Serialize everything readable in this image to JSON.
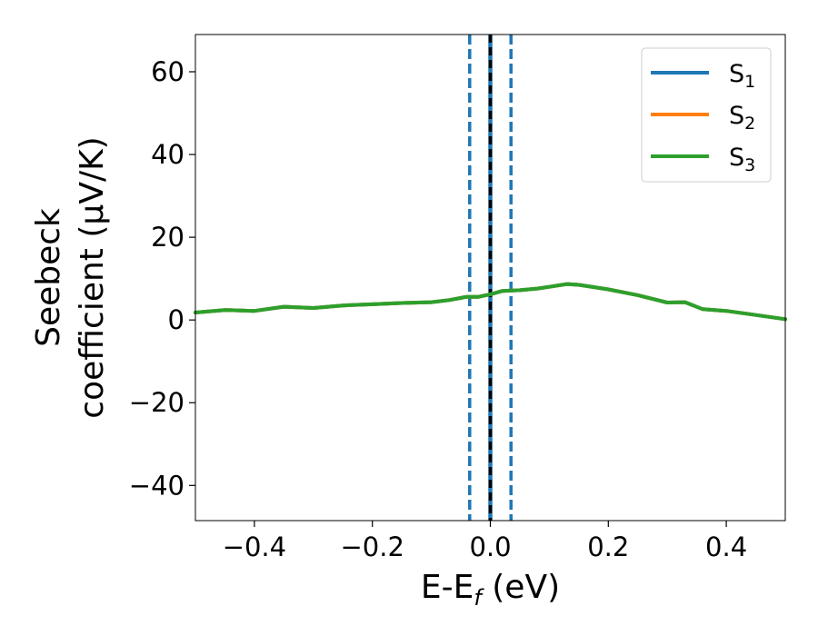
{
  "chart_data": {
    "type": "line",
    "title": "",
    "xlabel": {
      "base": "E-E",
      "sub": "f",
      "suffix": " (eV)"
    },
    "ylabel": {
      "line1": "Seebeck",
      "line2": "coefficient  (μV/K)"
    },
    "xlim": [
      -0.5,
      0.5
    ],
    "ylim": [
      -48.5,
      69
    ],
    "xticks": [
      -0.4,
      -0.2,
      0.0,
      0.2,
      0.4
    ],
    "xtick_labels": [
      "−0.4",
      "−0.2",
      "0.0",
      "0.2",
      "0.4"
    ],
    "yticks": [
      -40,
      -20,
      0,
      20,
      40,
      60
    ],
    "ytick_labels": [
      "−40",
      "−20",
      "0",
      "20",
      "40",
      "60"
    ],
    "grid": false,
    "legend_position": "top-right",
    "series": [
      {
        "name": "S",
        "sub": "1",
        "color": "#1f77b4",
        "x": [
          -0.5,
          -0.45,
          -0.4,
          -0.35,
          -0.3,
          -0.25,
          -0.2,
          -0.15,
          -0.1,
          -0.07,
          -0.04,
          -0.02,
          0.0,
          0.02,
          0.05,
          0.08,
          0.1,
          0.13,
          0.15,
          0.2,
          0.25,
          0.3,
          0.33,
          0.36,
          0.4,
          0.45,
          0.5
        ],
        "y": [
          1.8,
          2.4,
          2.2,
          3.2,
          2.9,
          3.5,
          3.8,
          4.1,
          4.3,
          4.8,
          5.6,
          5.6,
          6.2,
          7.0,
          7.2,
          7.6,
          8.0,
          8.7,
          8.5,
          7.4,
          6.0,
          4.2,
          4.3,
          2.6,
          2.2,
          1.2,
          0.2
        ]
      },
      {
        "name": "S",
        "sub": "2",
        "color": "#ff7f0e",
        "x": [
          -0.5,
          -0.45,
          -0.4,
          -0.35,
          -0.3,
          -0.25,
          -0.2,
          -0.15,
          -0.1,
          -0.07,
          -0.04,
          -0.02,
          0.0,
          0.02,
          0.05,
          0.08,
          0.1,
          0.13,
          0.15,
          0.2,
          0.25,
          0.3,
          0.33,
          0.36,
          0.4,
          0.45,
          0.5
        ],
        "y": [
          1.8,
          2.4,
          2.2,
          3.2,
          2.9,
          3.5,
          3.8,
          4.1,
          4.3,
          4.8,
          5.6,
          5.6,
          6.2,
          7.0,
          7.2,
          7.6,
          8.0,
          8.7,
          8.5,
          7.4,
          6.0,
          4.2,
          4.3,
          2.6,
          2.2,
          1.2,
          0.2
        ]
      },
      {
        "name": "S",
        "sub": "3",
        "color": "#2ca02c",
        "x": [
          -0.5,
          -0.45,
          -0.4,
          -0.35,
          -0.3,
          -0.25,
          -0.2,
          -0.15,
          -0.1,
          -0.07,
          -0.04,
          -0.02,
          0.0,
          0.02,
          0.05,
          0.08,
          0.1,
          0.13,
          0.15,
          0.2,
          0.25,
          0.3,
          0.33,
          0.36,
          0.4,
          0.45,
          0.5
        ],
        "y": [
          1.8,
          2.4,
          2.2,
          3.2,
          2.9,
          3.5,
          3.8,
          4.1,
          4.3,
          4.8,
          5.6,
          5.6,
          6.2,
          7.0,
          7.2,
          7.6,
          8.0,
          8.7,
          8.5,
          7.4,
          6.0,
          4.2,
          4.3,
          2.6,
          2.2,
          1.2,
          0.2
        ]
      }
    ],
    "vlines": [
      {
        "x": -0.035,
        "color": "#1f77b4",
        "style": "dashed"
      },
      {
        "x": 0.035,
        "color": "#1f77b4",
        "style": "dashed"
      },
      {
        "x": 0.0,
        "color": "#1f77b4",
        "style": "solid"
      },
      {
        "x": 0.0,
        "color": "#000000",
        "style": "dashed"
      }
    ]
  }
}
